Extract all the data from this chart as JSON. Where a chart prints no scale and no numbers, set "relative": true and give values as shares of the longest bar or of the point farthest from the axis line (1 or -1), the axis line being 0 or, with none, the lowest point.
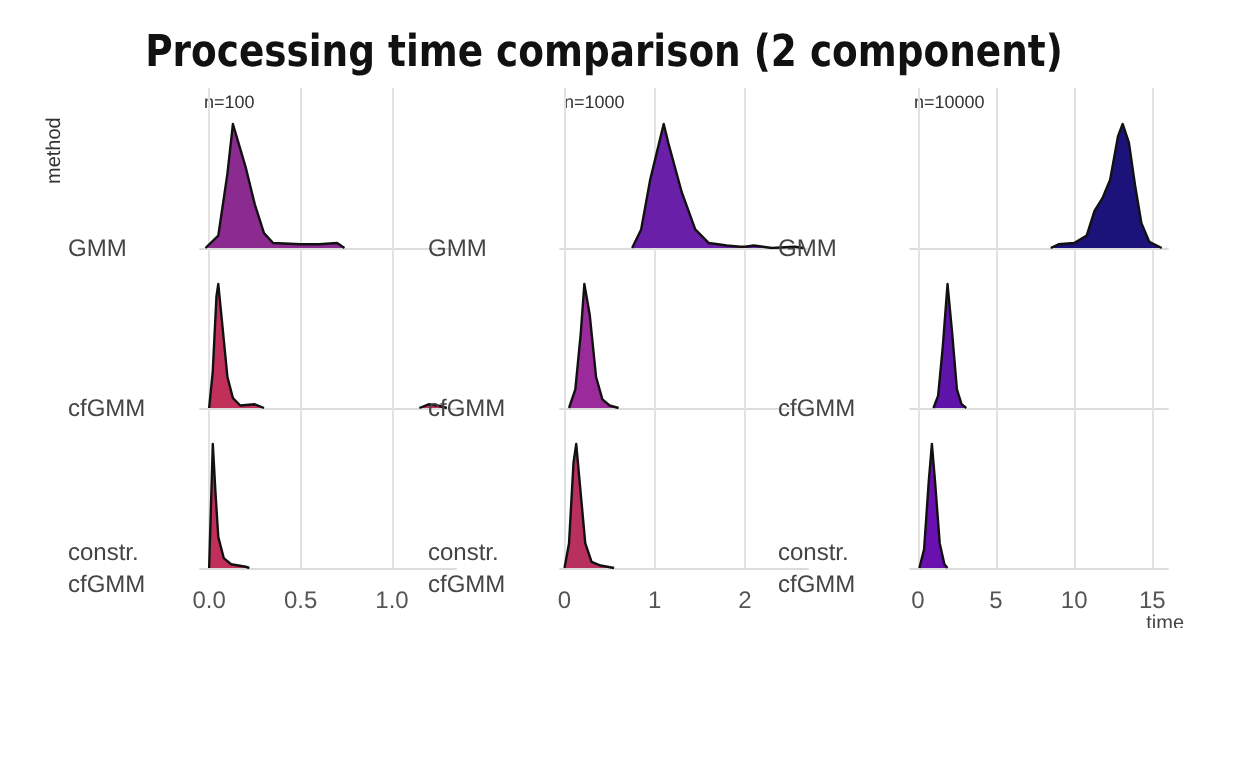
{
  "chart_data": [
    {
      "type": "area",
      "title": "Processing time comparison (2 component)",
      "subtitle": "n=100",
      "annotations": [
        "method"
      ],
      "ylabel": "GMM",
      "relative": true,
      "grid": "x",
      "tick_labels": false,
      "xlim": [
        -0.05,
        1.35
      ],
      "xticks": [
        0,
        0.5,
        1
      ],
      "series": [
        {
          "color": "#8b2a8f",
          "x": [
            -0.02,
            0.05,
            0.1,
            0.13,
            0.16,
            0.2,
            0.25,
            0.3,
            0.35,
            0.5,
            0.6,
            0.7,
            0.74
          ],
          "values": [
            0,
            0.1,
            0.6,
            1.0,
            0.85,
            0.65,
            0.35,
            0.12,
            0.04,
            0.03,
            0.03,
            0.04,
            0
          ]
        }
      ]
    },
    {
      "type": "area",
      "ylabel": "cfGMM",
      "relative": true,
      "grid": "x",
      "tick_labels": false,
      "xlim": [
        -0.05,
        1.35
      ],
      "xticks": [
        0,
        0.5,
        1
      ],
      "series": [
        {
          "color": "#c0305a",
          "x": [
            0,
            0.02,
            0.04,
            0.05,
            0.07,
            0.1,
            0.13,
            0.17,
            0.25,
            0.3,
            0.7,
            1.15,
            1.2,
            1.25,
            1.3
          ],
          "values": [
            0,
            0.3,
            0.9,
            1.0,
            0.7,
            0.25,
            0.08,
            0.02,
            0.03,
            0,
            null,
            0,
            0.03,
            0.02,
            0
          ]
        }
      ]
    },
    {
      "type": "area",
      "ylabel": "constr. cfGMM",
      "relative": true,
      "grid": "x",
      "tick_labels": "x",
      "xlim": [
        -0.05,
        1.35
      ],
      "xticks": [
        {
          "value": 0,
          "label": "0.0"
        },
        {
          "value": 0.5,
          "label": "0.5"
        },
        {
          "value": 1,
          "label": "1.0"
        }
      ],
      "series": [
        {
          "color": "#c0305a",
          "x": [
            0,
            0.01,
            0.02,
            0.035,
            0.05,
            0.08,
            0.12,
            0.2,
            0.22
          ],
          "values": [
            0,
            0.5,
            1.0,
            0.6,
            0.25,
            0.08,
            0.03,
            0.01,
            0
          ]
        }
      ]
    },
    {
      "type": "area",
      "subtitle": "n=1000",
      "ylabel": "GMM",
      "relative": true,
      "grid": "x",
      "tick_labels": false,
      "xlim": [
        -0.05,
        2.7
      ],
      "xticks": [
        0,
        1,
        2
      ],
      "series": [
        {
          "color": "#6a1fa8",
          "x": [
            0.75,
            0.85,
            0.95,
            1.05,
            1.1,
            1.15,
            1.3,
            1.45,
            1.6,
            1.8,
            1.95,
            2.0,
            2.1,
            2.2,
            2.3,
            2.55,
            2.65
          ],
          "values": [
            0,
            0.15,
            0.55,
            0.85,
            1.0,
            0.85,
            0.45,
            0.15,
            0.04,
            0.02,
            0.01,
            0.01,
            0.02,
            0.01,
            0,
            0.01,
            0
          ]
        }
      ]
    },
    {
      "type": "area",
      "ylabel": "cfGMM",
      "relative": true,
      "grid": "x",
      "tick_labels": false,
      "xlim": [
        -0.05,
        2.7
      ],
      "xticks": [
        0,
        1,
        2
      ],
      "series": [
        {
          "color": "#9b2a9a",
          "x": [
            0.05,
            0.12,
            0.18,
            0.22,
            0.28,
            0.35,
            0.42,
            0.5,
            0.6
          ],
          "values": [
            0,
            0.15,
            0.6,
            1.0,
            0.75,
            0.25,
            0.07,
            0.02,
            0
          ]
        }
      ]
    },
    {
      "type": "area",
      "ylabel": "constr. cfGMM",
      "relative": true,
      "grid": "x",
      "tick_labels": "x",
      "xlim": [
        -0.05,
        2.7
      ],
      "xticks": [
        0,
        1,
        2
      ],
      "series": [
        {
          "color": "#b8305e",
          "x": [
            0,
            0.05,
            0.1,
            0.13,
            0.18,
            0.23,
            0.3,
            0.4,
            0.55
          ],
          "values": [
            0,
            0.2,
            0.85,
            1.0,
            0.6,
            0.2,
            0.05,
            0.02,
            0
          ]
        }
      ]
    },
    {
      "type": "area",
      "subtitle": "n=10000",
      "ylabel": "GMM",
      "relative": true,
      "grid": "x",
      "tick_labels": false,
      "xlim": [
        -0.5,
        16
      ],
      "xticks": [
        0,
        5,
        10,
        15
      ],
      "series": [
        {
          "color": "#1c137a",
          "x": [
            8.5,
            9,
            10,
            10.8,
            11.3,
            11.8,
            12.3,
            12.8,
            13.1,
            13.5,
            13.9,
            14.3,
            14.8,
            15.6
          ],
          "values": [
            0,
            0.03,
            0.04,
            0.1,
            0.3,
            0.4,
            0.55,
            0.9,
            1.0,
            0.85,
            0.5,
            0.2,
            0.05,
            0
          ]
        }
      ]
    },
    {
      "type": "area",
      "ylabel": "cfGMM",
      "relative": true,
      "grid": "x",
      "tick_labels": false,
      "xlim": [
        -0.5,
        16
      ],
      "xticks": [
        0,
        5,
        10,
        15
      ],
      "series": [
        {
          "color": "#5e14a8",
          "x": [
            1.0,
            1.3,
            1.6,
            1.9,
            2.2,
            2.5,
            2.8,
            3.1
          ],
          "values": [
            0,
            0.1,
            0.5,
            1.0,
            0.6,
            0.15,
            0.03,
            0
          ]
        }
      ]
    },
    {
      "type": "area",
      "ylabel": "constr. cfGMM",
      "xlabel": "time",
      "relative": true,
      "grid": "x",
      "tick_labels": "x",
      "xlim": [
        -0.5,
        16
      ],
      "xticks": [
        0,
        5,
        10,
        15
      ],
      "series": [
        {
          "color": "#6a10b0",
          "x": [
            0.1,
            0.4,
            0.7,
            0.9,
            1.1,
            1.4,
            1.7,
            1.9
          ],
          "values": [
            0,
            0.15,
            0.7,
            1.0,
            0.7,
            0.2,
            0.03,
            0
          ]
        }
      ]
    }
  ]
}
